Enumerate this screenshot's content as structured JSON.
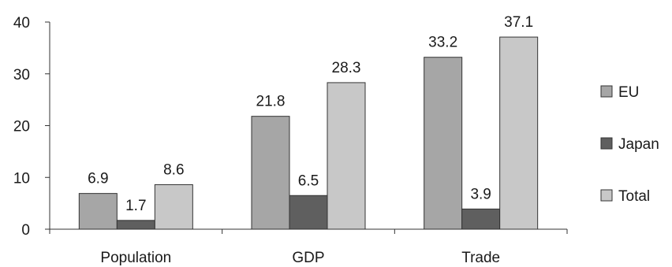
{
  "chart_data": {
    "type": "bar",
    "title": "",
    "xlabel": "",
    "ylabel": "",
    "categories": [
      "Population",
      "GDP",
      "Trade"
    ],
    "series": [
      {
        "name": "EU",
        "values": [
          6.9,
          21.8,
          33.2
        ],
        "color": "#a6a6a6"
      },
      {
        "name": "Japan",
        "values": [
          1.7,
          6.5,
          3.9
        ],
        "color": "#5f5f5f"
      },
      {
        "name": "Total",
        "values": [
          8.6,
          28.3,
          37.1
        ],
        "color": "#c8c8c8"
      }
    ],
    "ylim": [
      0,
      40
    ],
    "yticks": [
      "0",
      "10",
      "20",
      "30",
      "40"
    ],
    "grid": false,
    "legend_position": "right"
  }
}
